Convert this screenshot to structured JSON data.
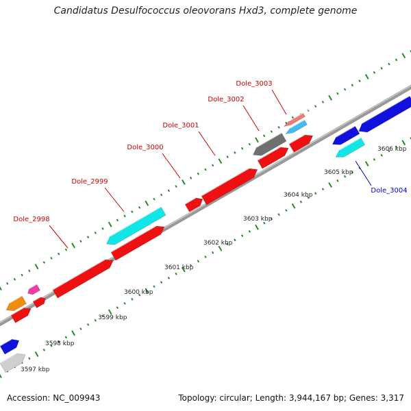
{
  "title": "Candidatus Desulfococcus oleovorans Hxd3, complete genome",
  "footer": {
    "accession": "Accession: NC_009943",
    "summary": "Topology: circular; Length: 3,944,167 bp; Genes: 3,317"
  },
  "colors": {
    "red": "#ee1111",
    "cyan": "#11e6e6",
    "blue": "#1111dd",
    "gray": "#707070",
    "light_gray": "#cfcfcf",
    "orange": "#f08c10",
    "pink": "#f03aa8",
    "salmon": "#f07878",
    "sky": "#44bbee",
    "tick_green": "#228822",
    "label_red": "#cc0000",
    "label_blue": "#0000cc"
  },
  "scale": {
    "unit": "kbp",
    "labels": [
      "3597 kbp",
      "3598 kbp",
      "3599 kbp",
      "3600 kbp",
      "3601 kbp",
      "3602 kbp",
      "3603 kbp",
      "3604 kbp",
      "3605 kbp",
      "3606 kbp"
    ]
  },
  "loci": [
    {
      "name": "Dole_2998",
      "color": "label_red"
    },
    {
      "name": "Dole_2999",
      "color": "label_red"
    },
    {
      "name": "Dole_3000",
      "color": "label_red"
    },
    {
      "name": "Dole_3001",
      "color": "label_red"
    },
    {
      "name": "Dole_3002",
      "color": "label_red"
    },
    {
      "name": "Dole_3003",
      "color": "label_red"
    },
    {
      "name": "Dole_3004",
      "color": "label_blue"
    }
  ],
  "features": [
    {
      "color": "light_gray"
    },
    {
      "color": "blue"
    },
    {
      "color": "red"
    },
    {
      "color": "orange"
    },
    {
      "color": "red"
    },
    {
      "color": "pink"
    },
    {
      "color": "red"
    },
    {
      "color": "red"
    },
    {
      "color": "cyan"
    },
    {
      "color": "red"
    },
    {
      "color": "red"
    },
    {
      "color": "gray"
    },
    {
      "color": "red"
    },
    {
      "color": "sky"
    },
    {
      "color": "salmon"
    },
    {
      "color": "red"
    },
    {
      "color": "cyan"
    },
    {
      "color": "blue"
    },
    {
      "color": "blue"
    }
  ]
}
